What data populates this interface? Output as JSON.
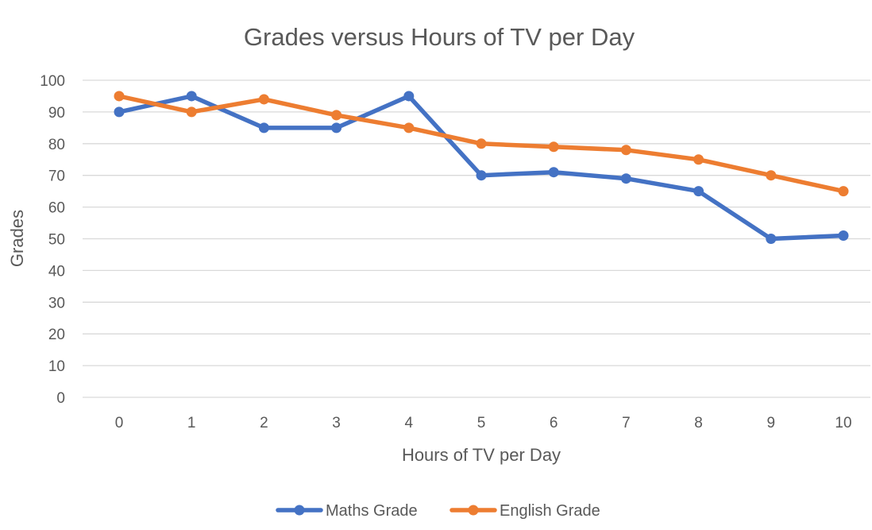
{
  "chart_data": {
    "type": "line",
    "title": "Grades versus Hours of TV per Day",
    "xlabel": "Hours of TV per Day",
    "ylabel": "Grades",
    "x": [
      0,
      1,
      2,
      3,
      4,
      5,
      6,
      7,
      8,
      9,
      10
    ],
    "x_tick_labels": [
      "0",
      "1",
      "2",
      "3",
      "4",
      "5",
      "6",
      "7",
      "8",
      "9",
      "10"
    ],
    "ylim": [
      0,
      100
    ],
    "y_ticks": [
      0,
      10,
      20,
      30,
      40,
      50,
      60,
      70,
      80,
      90,
      100
    ],
    "grid": true,
    "legend_position": "bottom",
    "series": [
      {
        "name": "Maths Grade",
        "color": "#4472c4",
        "values": [
          90,
          95,
          85,
          85,
          95,
          70,
          71,
          69,
          65,
          50,
          51
        ]
      },
      {
        "name": "English Grade",
        "color": "#ed7d31",
        "values": [
          95,
          90,
          94,
          89,
          85,
          80,
          79,
          78,
          75,
          70,
          65
        ]
      }
    ]
  }
}
